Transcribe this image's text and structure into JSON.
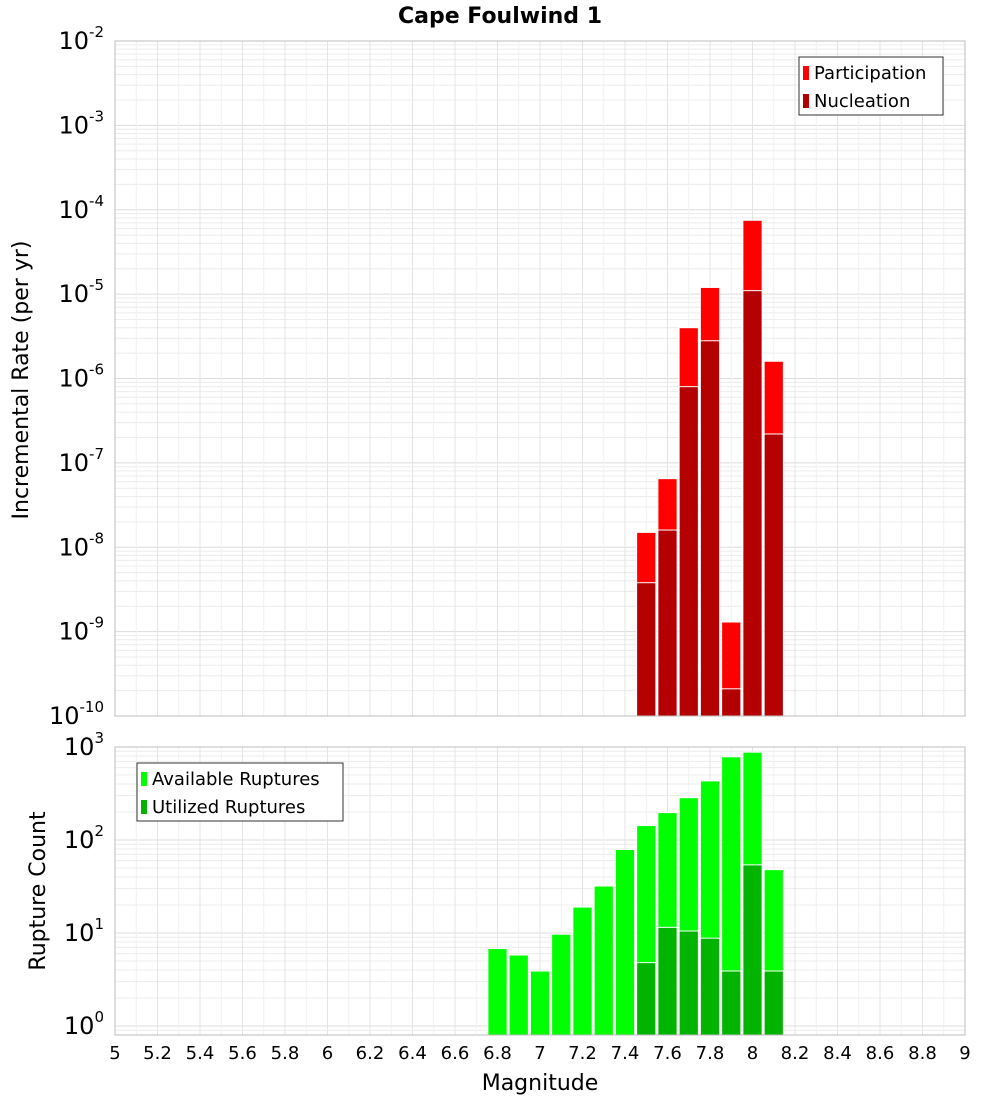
{
  "chart_data": [
    {
      "type": "bar",
      "title": "Cape Foulwind 1",
      "xlabel": "Magnitude",
      "ylabel": "Incremental Rate (per yr)",
      "yscale": "log",
      "ylim": [
        1e-10,
        0.01
      ],
      "xlim": [
        5,
        9
      ],
      "grid": true,
      "legend_position": "top-right",
      "x_ticks": [
        "5",
        "5.2",
        "5.4",
        "5.6",
        "5.8",
        "6",
        "6.2",
        "6.4",
        "6.6",
        "6.8",
        "7",
        "7.2",
        "7.4",
        "7.6",
        "7.8",
        "8",
        "8.2",
        "8.4",
        "8.6",
        "8.8",
        "9"
      ],
      "y_tick_exponents": [
        "-10",
        "-9",
        "-8",
        "-7",
        "-6",
        "-5",
        "-4",
        "-3",
        "-2"
      ],
      "x": [
        7.5,
        7.6,
        7.7,
        7.8,
        7.9,
        8.0,
        8.1
      ],
      "series": [
        {
          "name": "Participation",
          "color": "#ff0000",
          "values": [
            1.5e-08,
            6.5e-08,
            4e-06,
            1.2e-05,
            1.3e-09,
            7.5e-05,
            1.6e-06
          ]
        },
        {
          "name": "Nucleation",
          "color": "#b40000",
          "values": [
            3.8e-09,
            1.6e-08,
            8e-07,
            2.8e-06,
            2.1e-10,
            1.1e-05,
            2.2e-07
          ]
        }
      ]
    },
    {
      "type": "bar",
      "xlabel": "Magnitude",
      "ylabel": "Rupture Count",
      "yscale": "log",
      "ylim": [
        0.8,
        1000
      ],
      "xlim": [
        5,
        9
      ],
      "grid": true,
      "legend_position": "top-left",
      "y_tick_exponents": [
        "0",
        "1",
        "2",
        "3"
      ],
      "x": [
        6.8,
        6.9,
        7.0,
        7.1,
        7.2,
        7.3,
        7.4,
        7.5,
        7.6,
        7.7,
        7.8,
        7.9,
        8.0,
        8.1
      ],
      "series": [
        {
          "name": "Available Ruptures",
          "color": "#00ff00",
          "values": [
            6.8,
            5.8,
            3.9,
            9.7,
            19,
            32,
            79,
            143,
            197,
            285,
            432,
            785,
            880,
            48
          ]
        },
        {
          "name": "Utilized Ruptures",
          "color": "#00b400",
          "values": [
            null,
            null,
            null,
            null,
            null,
            null,
            null,
            4.8,
            11.5,
            10.5,
            8.8,
            3.9,
            54,
            3.9
          ]
        }
      ]
    }
  ]
}
